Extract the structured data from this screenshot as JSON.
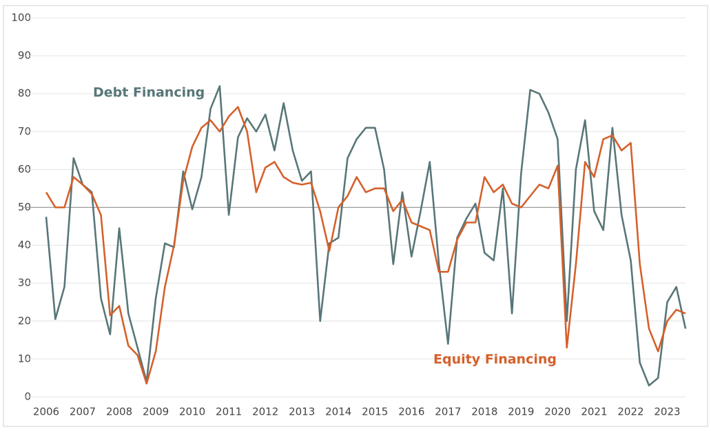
{
  "chart_data": {
    "type": "line",
    "x": [
      2006,
      2006.25,
      2006.5,
      2006.75,
      2007,
      2007.25,
      2007.5,
      2007.75,
      2008,
      2008.25,
      2008.5,
      2008.75,
      2009,
      2009.25,
      2009.5,
      2009.75,
      2010,
      2010.25,
      2010.5,
      2010.75,
      2011,
      2011.25,
      2011.5,
      2011.75,
      2012,
      2012.25,
      2012.5,
      2012.75,
      2013,
      2013.25,
      2013.5,
      2013.75,
      2014,
      2014.25,
      2014.5,
      2014.75,
      2015,
      2015.25,
      2015.5,
      2015.75,
      2016,
      2016.25,
      2016.5,
      2016.75,
      2017,
      2017.25,
      2017.5,
      2017.75,
      2018,
      2018.25,
      2018.5,
      2018.75,
      2019,
      2019.25,
      2019.5,
      2019.75,
      2020,
      2020.25,
      2020.5,
      2020.75,
      2021,
      2021.25,
      2021.5,
      2021.75,
      2022,
      2022.25,
      2022.5,
      2022.75,
      2023,
      2023.25,
      2023.5
    ],
    "series": [
      {
        "name": "Debt Financing",
        "color": "#587678",
        "values": [
          47.5,
          20.5,
          29,
          63,
          56,
          54,
          26,
          16.5,
          44.5,
          22,
          13,
          4,
          26,
          40.5,
          39.5,
          59.5,
          49.5,
          58,
          76,
          82,
          48,
          68.5,
          73.5,
          70,
          74.5,
          65,
          77.5,
          65,
          57,
          59.5,
          20,
          40.5,
          42,
          63,
          68,
          71,
          71,
          60,
          35,
          54,
          37,
          49,
          62,
          35,
          14,
          42,
          47,
          51,
          38,
          36,
          55,
          22,
          59,
          81,
          80,
          75,
          68,
          20,
          60,
          73,
          49,
          44,
          71,
          48,
          36,
          9,
          3,
          5,
          25,
          29,
          18
        ]
      },
      {
        "name": "Equity Financing",
        "color": "#d5602b",
        "values": [
          54,
          50,
          50,
          58,
          56,
          53.5,
          48,
          21.5,
          24,
          13.5,
          11,
          3.5,
          12,
          29,
          40,
          57,
          66,
          71,
          73,
          70,
          74,
          76.5,
          70,
          54,
          60.5,
          62,
          58,
          56.5,
          56,
          56.5,
          49,
          38.5,
          50,
          53,
          58,
          54,
          55,
          55,
          49,
          52,
          46,
          45,
          44,
          33,
          33,
          41.5,
          46,
          46,
          58,
          54,
          56,
          51,
          50,
          53,
          56,
          55,
          61,
          13,
          35,
          62,
          58,
          68,
          69,
          65,
          67,
          35,
          18,
          12,
          20,
          23,
          22
        ]
      }
    ],
    "xlim": [
      2006,
      2023.5
    ],
    "xticks": [
      2006,
      2007,
      2008,
      2009,
      2010,
      2011,
      2012,
      2013,
      2014,
      2015,
      2016,
      2017,
      2018,
      2019,
      2020,
      2021,
      2022,
      2023
    ],
    "ylim": [
      0,
      100
    ],
    "yticks": [
      0,
      10,
      20,
      30,
      40,
      50,
      60,
      70,
      80,
      90,
      100
    ],
    "grid": true,
    "reference_line": 50
  }
}
